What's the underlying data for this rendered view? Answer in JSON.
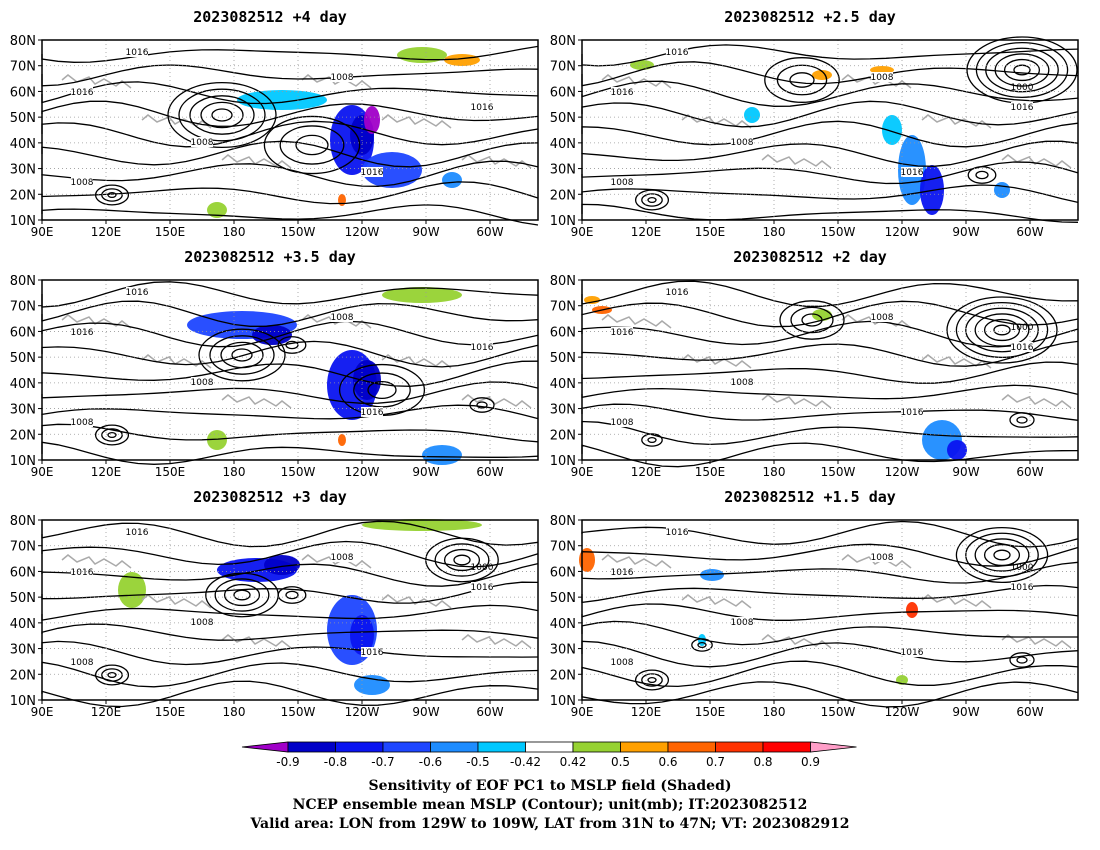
{
  "panels": [
    {
      "title": "2023082512  +4 day"
    },
    {
      "title": "2023082512  +2.5 day"
    },
    {
      "title": "2023082512  +3.5 day"
    },
    {
      "title": "2023082512  +2 day"
    },
    {
      "title": "2023082512  +3 day"
    },
    {
      "title": "2023082512  +1.5 day"
    }
  ],
  "axes": {
    "lat_labels": [
      "80N",
      "70N",
      "60N",
      "50N",
      "40N",
      "30N",
      "20N",
      "10N"
    ],
    "lon_labels": [
      "90E",
      "120E",
      "150E",
      "180",
      "150W",
      "120W",
      "90W",
      "60W"
    ]
  },
  "contour_label": "1016",
  "contour_label_low": "1008",
  "contour_label_deep": "1000",
  "colorbar": {
    "ticks": [
      "-0.9",
      "-0.8",
      "-0.7",
      "-0.6",
      "-0.5",
      "-0.42",
      "0.42",
      "0.5",
      "0.6",
      "0.7",
      "0.8",
      "0.9"
    ],
    "colors": [
      "#a000c8",
      "#0000c8",
      "#0a14f0",
      "#1e46ff",
      "#1e8cff",
      "#00c8ff",
      "#ffffff",
      "#96d232",
      "#ffa000",
      "#ff6400",
      "#ff3200",
      "#ff0000",
      "#ff9ec8"
    ]
  },
  "captions": {
    "line1": "Sensitivity of EOF PC1 to MSLP field (Shaded)",
    "line2": "NCEP ensemble mean MSLP (Contour); unit(mb); IT:2023082512",
    "line3": "Valid area: LON from 129W to 109W, LAT from 31N to 47N; VT: 2023082912"
  }
}
